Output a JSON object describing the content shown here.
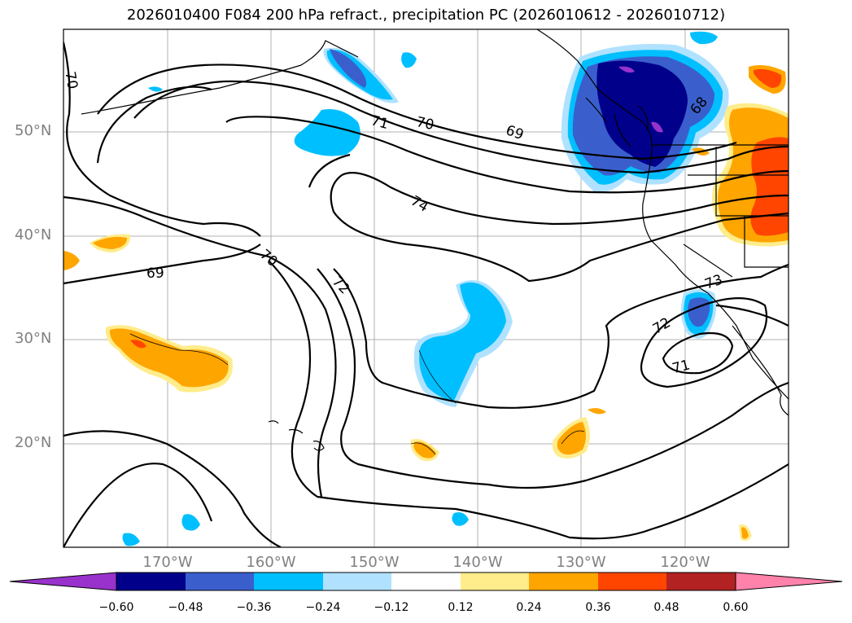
{
  "title": "2026010400 F084 200 hPa refract., precipitation PC (2026010612 - 2026010712)",
  "lat_labels": [
    "50°N",
    "40°N",
    "30°N",
    "20°N"
  ],
  "lon_labels": [
    "170°W",
    "160°W",
    "150°W",
    "140°W",
    "130°W",
    "120°W"
  ],
  "contour_labels": [
    "70",
    "71",
    "70",
    "69",
    "74",
    "69",
    "70",
    "72",
    "73",
    "72",
    "71",
    "68"
  ],
  "colorbar": {
    "ticks": [
      "−0.60",
      "−0.48",
      "−0.36",
      "−0.24",
      "−0.12",
      "0.12",
      "0.24",
      "0.36",
      "0.48",
      "0.60"
    ],
    "colors": [
      "#9932cc",
      "#00008b",
      "#3a5fcd",
      "#00bfff",
      "#b0e2ff",
      "#ffffff",
      "#ffec8b",
      "#ffa500",
      "#ff4500",
      "#b22222",
      "#ff82ab"
    ]
  },
  "map_colors": {
    "ocean": "#ffffff",
    "coastline": "#000000",
    "grid": "#b0b0b0"
  }
}
